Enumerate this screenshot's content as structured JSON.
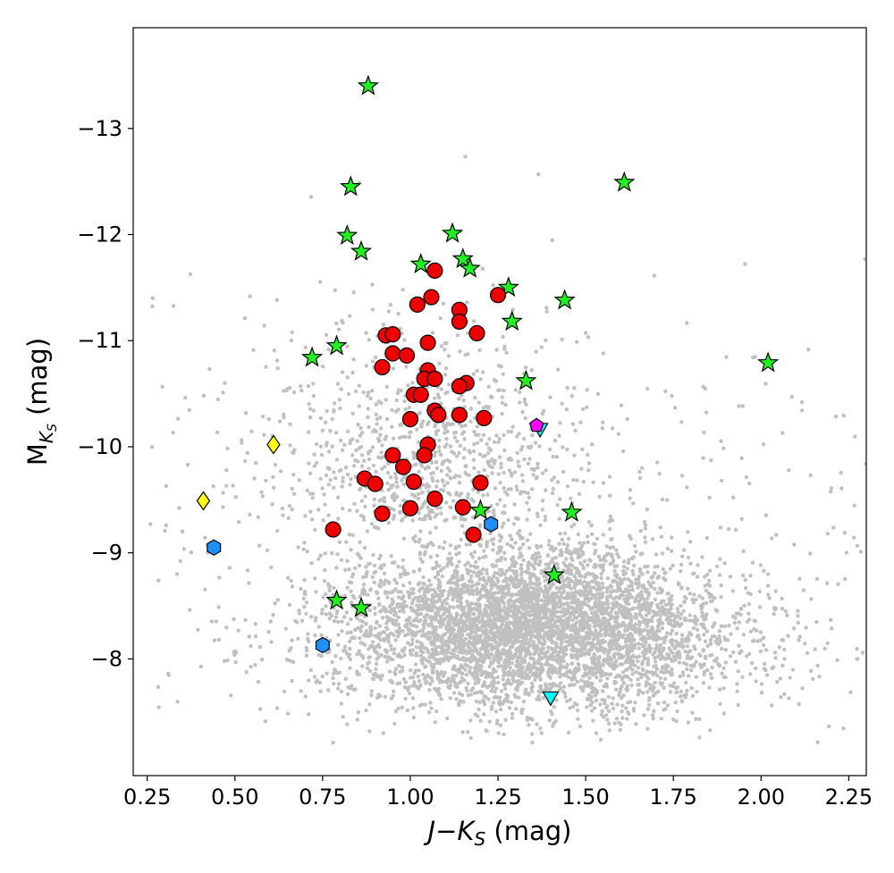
{
  "chart_data": {
    "type": "scatter",
    "xlabel_parts": {
      "italic_J": "J",
      "minus": "−",
      "italic_K": "K",
      "sub": "S",
      "rest": " (mag)"
    },
    "ylabel_parts": {
      "main": "M",
      "sub_italic": "K",
      "sub_sub": "S",
      "rest": " (mag)"
    },
    "xlim": [
      0.21,
      2.3
    ],
    "ylim": [
      -6.9,
      -13.95
    ],
    "y_inverted": true,
    "x_ticks": [
      {
        "value": 0.25,
        "label": "0.25"
      },
      {
        "value": 0.5,
        "label": "0.50"
      },
      {
        "value": 0.75,
        "label": "0.75"
      },
      {
        "value": 1.0,
        "label": "1.00"
      },
      {
        "value": 1.25,
        "label": "1.25"
      },
      {
        "value": 1.5,
        "label": "1.50"
      },
      {
        "value": 1.75,
        "label": "1.75"
      },
      {
        "value": 2.0,
        "label": "2.00"
      },
      {
        "value": 2.25,
        "label": "2.25"
      }
    ],
    "y_ticks": [
      {
        "value": -8,
        "label": "−8"
      },
      {
        "value": -9,
        "label": "−9"
      },
      {
        "value": -10,
        "label": "−10"
      },
      {
        "value": -11,
        "label": "−11"
      },
      {
        "value": -12,
        "label": "−12"
      },
      {
        "value": -13,
        "label": "−13"
      }
    ],
    "grid": false,
    "legend": "none",
    "background_field": {
      "name": "",
      "color": "#c0c0c0",
      "description_points_approx": "dense cloud of gray points, concentrated at J-Ks 0.8-2.0, MKs -7.6 to -9.2, sparse tail to -13.4",
      "n_points_approx": 6000
    },
    "series": [
      {
        "marker": "star",
        "color": "#22ee22",
        "points": [
          [
            0.88,
            -13.4
          ],
          [
            0.83,
            -12.45
          ],
          [
            1.61,
            -12.49
          ],
          [
            0.82,
            -11.99
          ],
          [
            1.12,
            -12.01
          ],
          [
            0.86,
            -11.84
          ],
          [
            1.03,
            -11.72
          ],
          [
            1.15,
            -11.77
          ],
          [
            1.17,
            -11.68
          ],
          [
            1.28,
            -11.5
          ],
          [
            1.44,
            -11.38
          ],
          [
            1.29,
            -11.18
          ],
          [
            0.79,
            -10.95
          ],
          [
            0.72,
            -10.84
          ],
          [
            2.02,
            -10.79
          ],
          [
            1.33,
            -10.62
          ],
          [
            1.2,
            -9.4
          ],
          [
            1.46,
            -9.38
          ],
          [
            1.41,
            -8.79
          ],
          [
            0.79,
            -8.55
          ],
          [
            0.86,
            -8.48
          ]
        ]
      },
      {
        "marker": "circle",
        "color": "#ee0000",
        "points": [
          [
            1.07,
            -11.66
          ],
          [
            1.25,
            -11.43
          ],
          [
            1.06,
            -11.41
          ],
          [
            1.02,
            -11.34
          ],
          [
            1.14,
            -11.29
          ],
          [
            1.14,
            -11.18
          ],
          [
            1.19,
            -11.07
          ],
          [
            0.93,
            -11.05
          ],
          [
            0.95,
            -11.06
          ],
          [
            1.05,
            -10.98
          ],
          [
            0.95,
            -10.88
          ],
          [
            0.99,
            -10.86
          ],
          [
            0.92,
            -10.75
          ],
          [
            1.05,
            -10.72
          ],
          [
            1.04,
            -10.64
          ],
          [
            1.07,
            -10.64
          ],
          [
            1.16,
            -10.6
          ],
          [
            1.14,
            -10.57
          ],
          [
            1.01,
            -10.49
          ],
          [
            1.03,
            -10.49
          ],
          [
            1.07,
            -10.34
          ],
          [
            1.08,
            -10.3
          ],
          [
            1.14,
            -10.3
          ],
          [
            1.21,
            -10.27
          ],
          [
            1.0,
            -10.26
          ],
          [
            1.05,
            -10.02
          ],
          [
            0.95,
            -9.92
          ],
          [
            1.04,
            -9.92
          ],
          [
            0.98,
            -9.81
          ],
          [
            0.87,
            -9.7
          ],
          [
            0.9,
            -9.65
          ],
          [
            1.01,
            -9.67
          ],
          [
            1.2,
            -9.66
          ],
          [
            1.07,
            -9.51
          ],
          [
            1.15,
            -9.43
          ],
          [
            1.0,
            -9.42
          ],
          [
            0.92,
            -9.37
          ],
          [
            0.78,
            -9.22
          ],
          [
            1.18,
            -9.17
          ]
        ]
      },
      {
        "marker": "diamond",
        "color": "#ffff11",
        "points": [
          [
            0.61,
            -10.02
          ],
          [
            0.41,
            -9.49
          ]
        ]
      },
      {
        "marker": "hexagon",
        "color": "#1e90ff",
        "points": [
          [
            1.23,
            -9.27
          ],
          [
            0.44,
            -9.05
          ],
          [
            0.75,
            -8.13
          ]
        ]
      },
      {
        "marker": "triangle-down",
        "color": "#00ffff",
        "points": [
          [
            1.37,
            -10.16
          ],
          [
            1.4,
            -7.63
          ]
        ]
      },
      {
        "marker": "pentagon",
        "color": "#ff00ff",
        "points": [
          [
            1.36,
            -10.2
          ]
        ]
      }
    ]
  }
}
